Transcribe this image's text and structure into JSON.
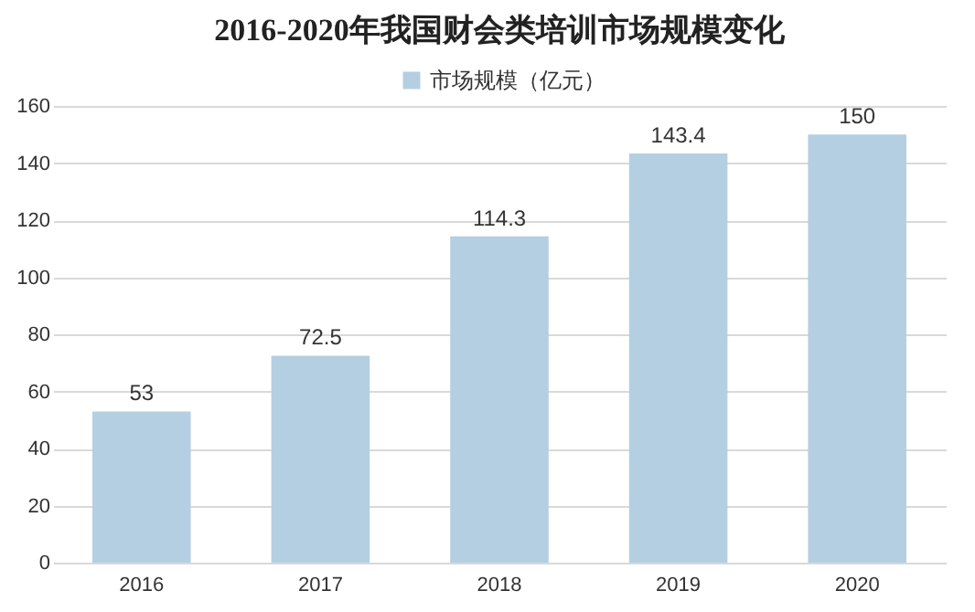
{
  "chart_data": {
    "type": "bar",
    "title": "2016-2020年我国财会类培训市场规模变化",
    "categories": [
      "2016",
      "2017",
      "2018",
      "2019",
      "2020"
    ],
    "series": [
      {
        "name": "市场规模（亿元）",
        "color": "#b4cfe1",
        "values": [
          53,
          72.5,
          114.3,
          143.4,
          150
        ]
      }
    ],
    "ylim": [
      0,
      160
    ],
    "yticks": [
      0,
      20,
      40,
      60,
      80,
      100,
      120,
      140,
      160
    ],
    "grid": "y",
    "legend": "top",
    "data_labels": true
  }
}
